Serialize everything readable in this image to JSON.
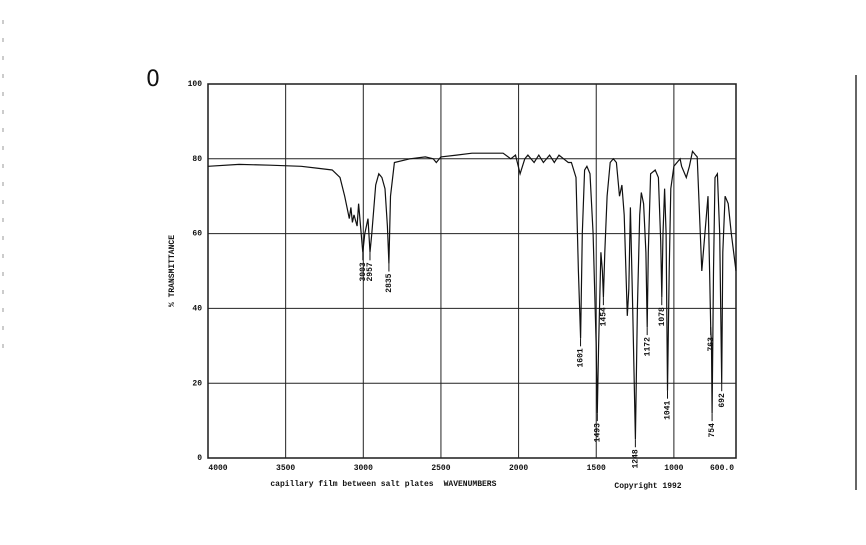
{
  "chart_data": {
    "type": "line",
    "sample_id": "0",
    "y_label": "% TRANSMITTANCE",
    "x_label": "WAVENUMBERS",
    "note": "capillary film between salt plates",
    "copyright": "Copyright 1992",
    "color": "#111111",
    "x": [
      4000,
      3800,
      3600,
      3400,
      3300,
      3200,
      3150,
      3120,
      3100,
      3090,
      3080,
      3070,
      3060,
      3040,
      3030,
      3003,
      2990,
      2970,
      2957,
      2945,
      2920,
      2900,
      2880,
      2860,
      2845,
      2835,
      2825,
      2800,
      2700,
      2600,
      2550,
      2530,
      2500,
      2400,
      2300,
      2200,
      2100,
      2050,
      2020,
      1990,
      1960,
      1940,
      1900,
      1870,
      1840,
      1800,
      1770,
      1740,
      1710,
      1680,
      1660,
      1630,
      1615,
      1601,
      1590,
      1575,
      1560,
      1540,
      1520,
      1500,
      1493,
      1485,
      1470,
      1460,
      1454,
      1445,
      1430,
      1410,
      1390,
      1370,
      1350,
      1335,
      1320,
      1300,
      1290,
      1280,
      1265,
      1248,
      1235,
      1220,
      1210,
      1195,
      1180,
      1172,
      1165,
      1150,
      1120,
      1100,
      1085,
      1078,
      1070,
      1060,
      1050,
      1041,
      1030,
      1020,
      1000,
      980,
      960,
      950,
      920,
      900,
      880,
      860,
      850,
      820,
      800,
      780,
      770,
      763,
      758,
      754,
      745,
      735,
      720,
      705,
      692,
      685,
      670,
      650,
      630,
      600
    ],
    "values": [
      78,
      78.5,
      78.3,
      78,
      77.5,
      77,
      75,
      70,
      66,
      64,
      67,
      63,
      65,
      62,
      68,
      55,
      60,
      64,
      55,
      60,
      73,
      76,
      75,
      72,
      62,
      52,
      70,
      79,
      80,
      80.5,
      80,
      79,
      80.5,
      81,
      81.5,
      81.5,
      81.5,
      80,
      81,
      76,
      80,
      81,
      79,
      81,
      79,
      81,
      79,
      81,
      80,
      79,
      79,
      75,
      50,
      32,
      60,
      77,
      78,
      76,
      60,
      30,
      12,
      30,
      55,
      50,
      43,
      55,
      70,
      79,
      80,
      79,
      70,
      73,
      65,
      38,
      45,
      67,
      40,
      5,
      40,
      65,
      71,
      68,
      55,
      35,
      55,
      76,
      77,
      75,
      58,
      43,
      60,
      72,
      60,
      18,
      50,
      72,
      78,
      79,
      80,
      78,
      75,
      78,
      82,
      81,
      80.5,
      50,
      60,
      70,
      50,
      35,
      30,
      12,
      50,
      75,
      76,
      60,
      20,
      55,
      70,
      68,
      60,
      50
    ],
    "peak_labels": [
      3003,
      2957,
      2835,
      1601,
      1493,
      1454,
      1248,
      1172,
      1078,
      1041,
      763,
      754,
      692
    ],
    "xlim": [
      4000,
      600
    ],
    "xticks": [
      4000,
      3500,
      3000,
      2500,
      2000,
      1500,
      1000,
      {
        "value": 600,
        "label": "600.0"
      }
    ],
    "ylim": [
      0,
      100
    ],
    "yticks": [
      0,
      20,
      40,
      60,
      80,
      100
    ],
    "grid": true
  }
}
